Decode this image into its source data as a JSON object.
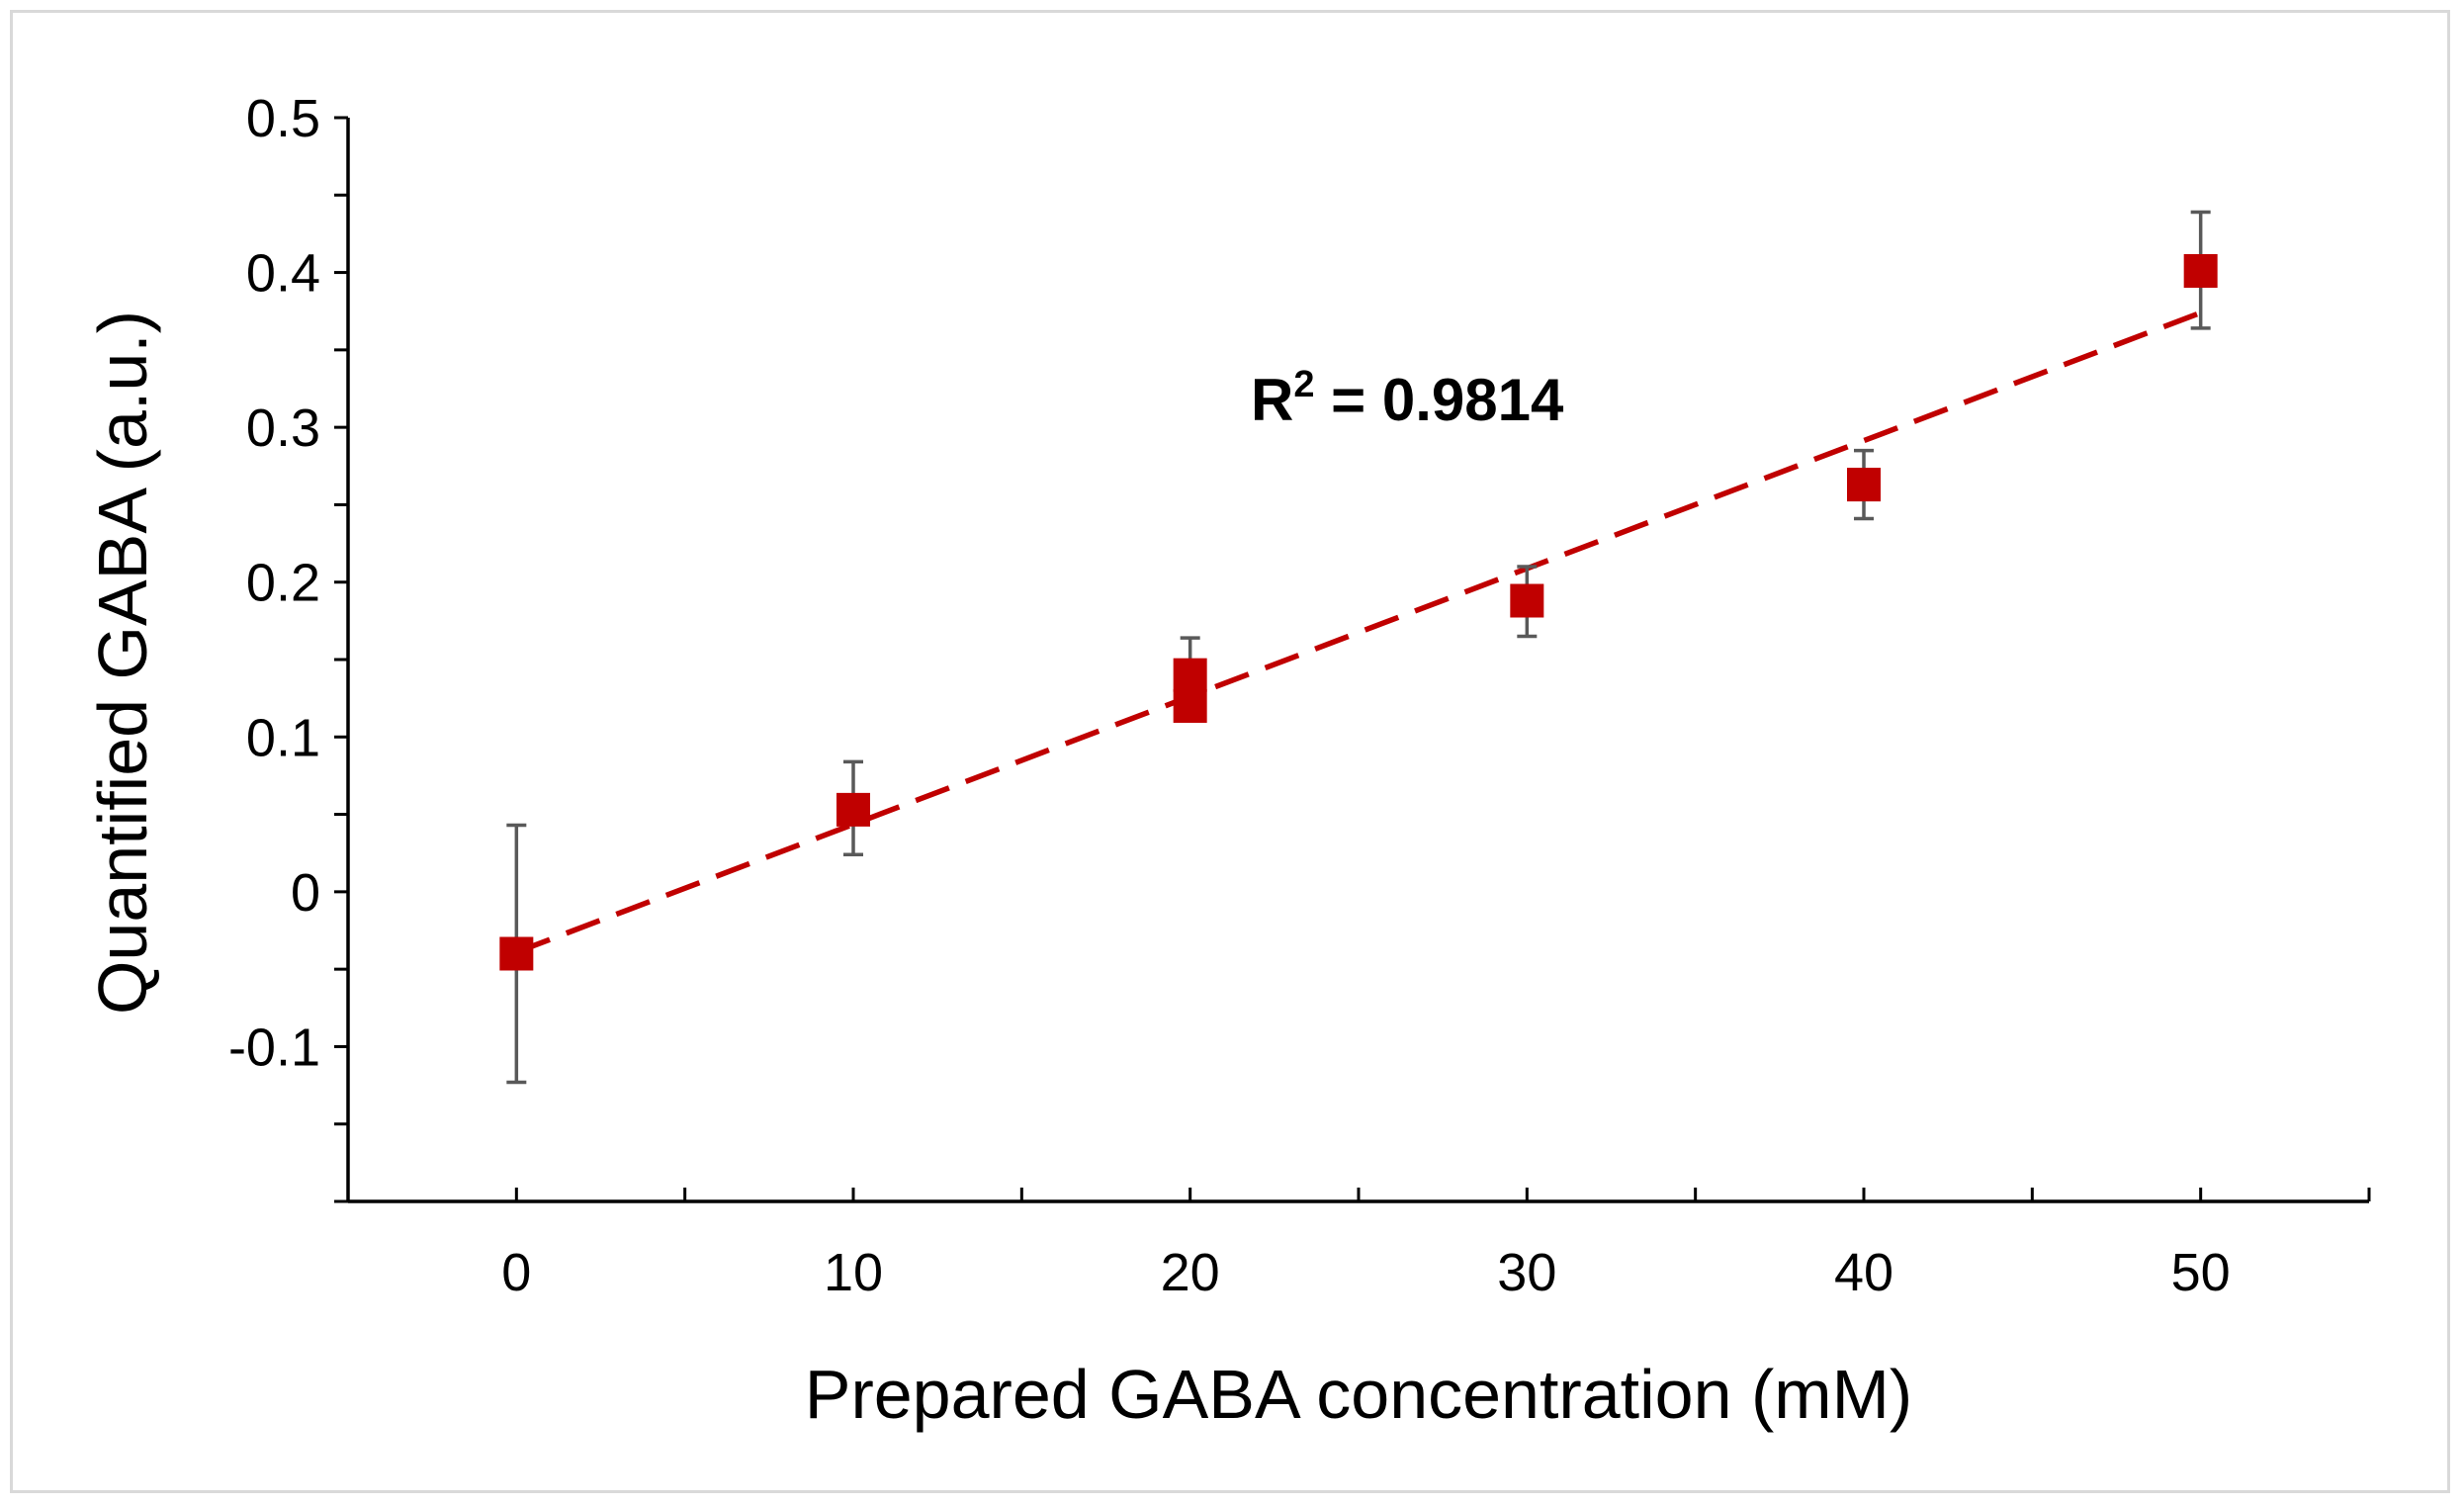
{
  "chart_data": {
    "type": "scatter",
    "title": "",
    "xlabel": "Prepared GABA concentration (mM)",
    "ylabel": "Quantified GABA (a.u.)",
    "xlim": [
      -5,
      55
    ],
    "ylim": [
      -0.2,
      0.5
    ],
    "xticks": [
      0,
      10,
      20,
      30,
      40,
      50
    ],
    "yticks": [
      -0.1,
      0,
      0.1,
      0.2,
      0.3,
      0.4,
      0.5
    ],
    "xtick_labels": [
      "0",
      "10",
      "20",
      "30",
      "40",
      "50"
    ],
    "ytick_labels": [
      "-0.1",
      "0",
      "0.1",
      "0.2",
      "0.3",
      "0.4",
      "0.5"
    ],
    "series": [
      {
        "name": "Quantified GABA",
        "marker": "square",
        "color": "#c00000",
        "points": [
          {
            "x": 0,
            "y": -0.04,
            "err_low": -0.123,
            "err_high": 0.043
          },
          {
            "x": 10,
            "y": 0.053,
            "err_low": 0.024,
            "err_high": 0.084
          },
          {
            "x": 20,
            "y": 0.12,
            "err_low": null,
            "err_high": null
          },
          {
            "x": 20,
            "y": 0.14,
            "err_low": 0.12,
            "err_high": 0.164
          },
          {
            "x": 30,
            "y": 0.188,
            "err_low": 0.165,
            "err_high": 0.21
          },
          {
            "x": 40,
            "y": 0.263,
            "err_low": 0.241,
            "err_high": 0.285
          },
          {
            "x": 50,
            "y": 0.401,
            "err_low": 0.364,
            "err_high": 0.439
          }
        ]
      }
    ],
    "trendline": {
      "type": "linear",
      "style": "dashed",
      "color": "#c00000",
      "x_start": 0,
      "y_start": -0.039,
      "x_end": 50,
      "y_end": 0.374
    },
    "annotation": {
      "text_main": "R",
      "text_sup": "2",
      "text_rest": " = 0.9814"
    },
    "grid": false,
    "legend": "none"
  }
}
